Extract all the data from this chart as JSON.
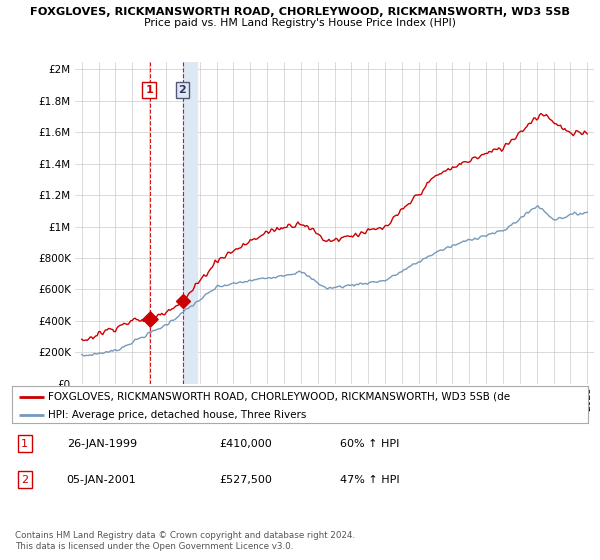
{
  "title_line1": "FOXGLOVES, RICKMANSWORTH ROAD, CHORLEYWOOD, RICKMANSWORTH, WD3 5SB",
  "title_line2": "Price paid vs. HM Land Registry's House Price Index (HPI)",
  "ytick_values": [
    0,
    200000,
    400000,
    600000,
    800000,
    1000000,
    1200000,
    1400000,
    1600000,
    1800000,
    2000000
  ],
  "ylim": [
    0,
    2050000
  ],
  "xlim_start": 1994.6,
  "xlim_end": 2025.4,
  "sale1_year": 1999.07,
  "sale1_price": 410000,
  "sale2_year": 2001.03,
  "sale2_price": 527500,
  "sale2_span_end": 2001.85,
  "legend_red_label": "FOXGLOVES, RICKMANSWORTH ROAD, CHORLEYWOOD, RICKMANSWORTH, WD3 5SB (de",
  "legend_blue_label": "HPI: Average price, detached house, Three Rivers",
  "table_rows": [
    {
      "num": "1",
      "date": "26-JAN-1999",
      "price": "£410,000",
      "hpi": "60% ↑ HPI"
    },
    {
      "num": "2",
      "date": "05-JAN-2001",
      "price": "£527,500",
      "hpi": "47% ↑ HPI"
    }
  ],
  "footnote1": "Contains HM Land Registry data © Crown copyright and database right 2024.",
  "footnote2": "This data is licensed under the Open Government Licence v3.0.",
  "bg_color": "#ffffff",
  "grid_color": "#cccccc",
  "red_line_color": "#cc0000",
  "blue_line_color": "#7799bb",
  "sale2_box_color": "#dde8f5"
}
